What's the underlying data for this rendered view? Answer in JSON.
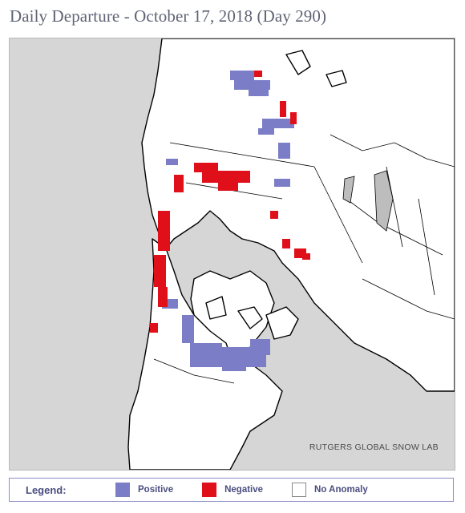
{
  "title": "Daily Departure - October 17, 2018 (Day 290)",
  "credit": "RUTGERS GLOBAL SNOW LAB",
  "legend": {
    "heading": "Legend:",
    "items": [
      {
        "label": "Positive",
        "color": "#7b7ec7"
      },
      {
        "label": "Negative",
        "color": "#e0101a"
      },
      {
        "label": "No Anomaly",
        "color": "#ffffff"
      }
    ]
  },
  "colors": {
    "ocean": "#d6d6d6",
    "land": "#ffffff",
    "lake": "#bdbdbd",
    "coast": "#000000"
  }
}
